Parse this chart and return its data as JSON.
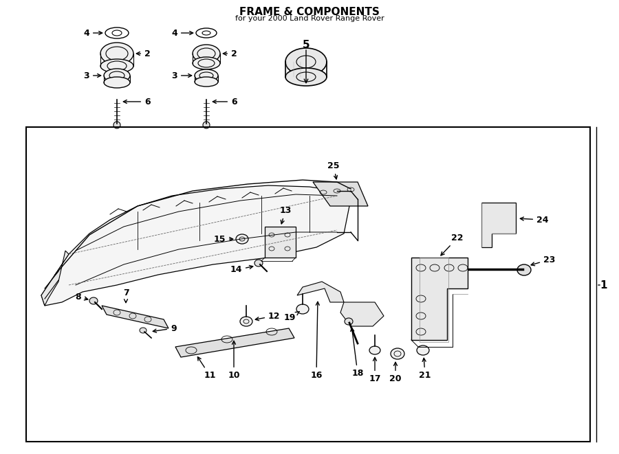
{
  "title": "FRAME & COMPONENTS",
  "subtitle": "for your 2000 Land Rover Range Rover",
  "background_color": "#ffffff",
  "line_color": "#000000",
  "text_color": "#000000",
  "fig_width": 9.0,
  "fig_height": 6.61,
  "dpi": 100
}
